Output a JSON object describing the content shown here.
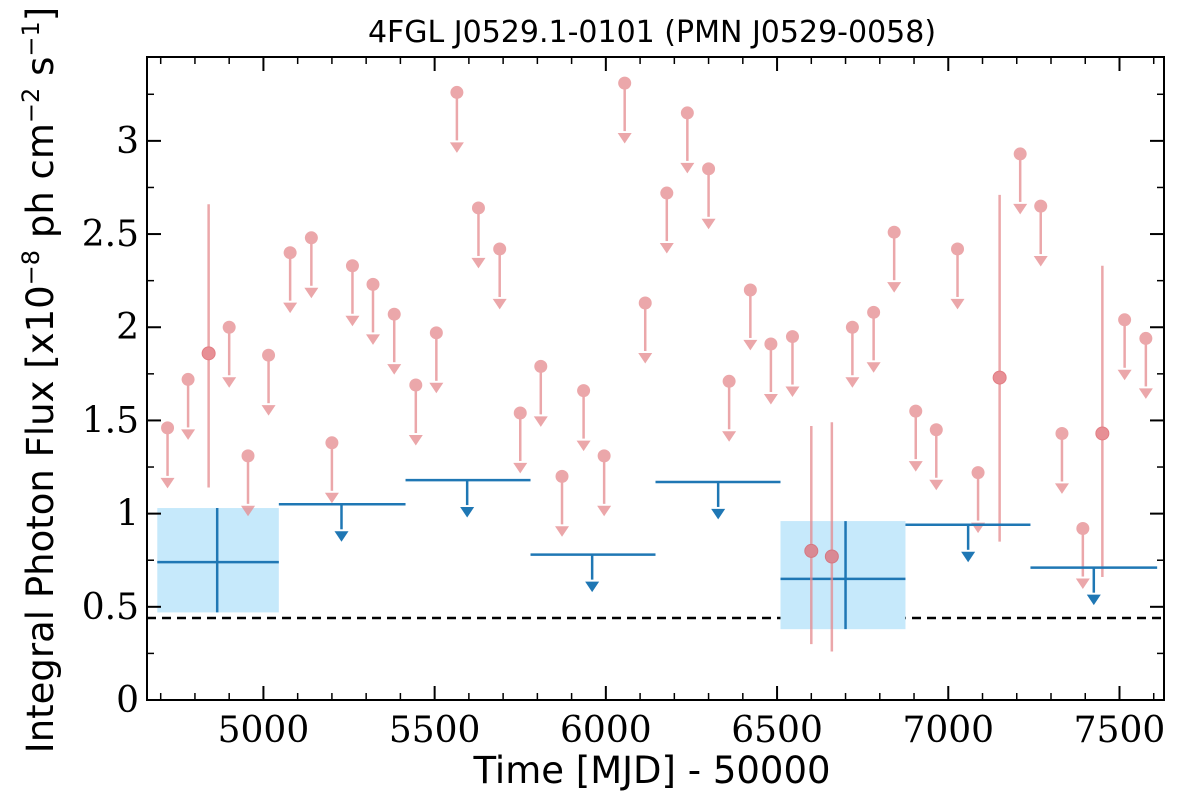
{
  "chart_data": {
    "type": "scatter",
    "title": "4FGL J0529.1-0101 (PMN J0529-0058)",
    "xlabel": "Time [MJD] - 50000",
    "ylabel": "Integral Photon Flux [x10",
    "ylabel_exp1": "−8",
    "ylabel_mid": " ph cm",
    "ylabel_exp2": "−2",
    "ylabel_mid2": " s",
    "ylabel_exp3": "−1",
    "ylabel_end": "]",
    "xlim": [
      4660,
      7630
    ],
    "ylim": [
      0,
      3.45
    ],
    "x_ticks": [
      5000,
      5500,
      6000,
      6500,
      7000,
      7500
    ],
    "x_tick_labels": [
      "5000",
      "5500",
      "6000",
      "6500",
      "7000",
      "7500"
    ],
    "y_ticks": [
      0,
      0.5,
      1,
      1.5,
      2,
      2.5,
      3
    ],
    "y_tick_labels": [
      "0",
      "0.5",
      "1",
      "1.5",
      "2",
      "2.5",
      "3"
    ],
    "reference_line": {
      "y": 0.44,
      "style": "dashed",
      "color": "#000000"
    },
    "colors": {
      "monthly": "#e58a8e",
      "yearly": "#1f77b4",
      "yearly_box": "#c6e9fb"
    },
    "series": [
      {
        "kind": "upper_limits_monthly",
        "points": [
          {
            "x": 4720,
            "y": 1.46
          },
          {
            "x": 4780,
            "y": 1.72
          },
          {
            "x": 4900,
            "y": 2.0
          },
          {
            "x": 4955,
            "y": 1.31
          },
          {
            "x": 5015,
            "y": 1.85
          },
          {
            "x": 5078,
            "y": 2.4
          },
          {
            "x": 5140,
            "y": 2.48
          },
          {
            "x": 5200,
            "y": 1.38
          },
          {
            "x": 5260,
            "y": 2.33
          },
          {
            "x": 5320,
            "y": 2.23
          },
          {
            "x": 5382,
            "y": 2.07
          },
          {
            "x": 5445,
            "y": 1.69
          },
          {
            "x": 5505,
            "y": 1.97
          },
          {
            "x": 5565,
            "y": 3.26
          },
          {
            "x": 5628,
            "y": 2.64
          },
          {
            "x": 5690,
            "y": 2.42
          },
          {
            "x": 5750,
            "y": 1.54
          },
          {
            "x": 5810,
            "y": 1.79
          },
          {
            "x": 5872,
            "y": 1.2
          },
          {
            "x": 5935,
            "y": 1.66
          },
          {
            "x": 5995,
            "y": 1.31
          },
          {
            "x": 6055,
            "y": 3.31
          },
          {
            "x": 6115,
            "y": 2.13
          },
          {
            "x": 6178,
            "y": 2.72
          },
          {
            "x": 6238,
            "y": 3.15
          },
          {
            "x": 6300,
            "y": 2.85
          },
          {
            "x": 6360,
            "y": 1.71
          },
          {
            "x": 6422,
            "y": 2.2
          },
          {
            "x": 6482,
            "y": 1.91
          },
          {
            "x": 6545,
            "y": 1.95
          },
          {
            "x": 6720,
            "y": 2.0
          },
          {
            "x": 6782,
            "y": 2.08
          },
          {
            "x": 6842,
            "y": 2.51
          },
          {
            "x": 6905,
            "y": 1.55
          },
          {
            "x": 6965,
            "y": 1.45
          },
          {
            "x": 7027,
            "y": 2.42
          },
          {
            "x": 7087,
            "y": 1.22
          },
          {
            "x": 7210,
            "y": 2.93
          },
          {
            "x": 7270,
            "y": 2.65
          },
          {
            "x": 7332,
            "y": 1.43
          },
          {
            "x": 7393,
            "y": 0.92
          },
          {
            "x": 7515,
            "y": 2.04
          },
          {
            "x": 7577,
            "y": 1.94
          }
        ]
      },
      {
        "kind": "detections_monthly",
        "points": [
          {
            "x": 4840,
            "y": 1.86,
            "ylo": 1.14,
            "yhi": 2.66
          },
          {
            "x": 6600,
            "y": 0.8,
            "ylo": 0.3,
            "yhi": 1.47
          },
          {
            "x": 6660,
            "y": 0.77,
            "ylo": 0.26,
            "yhi": 1.49
          },
          {
            "x": 7150,
            "y": 1.73,
            "ylo": 0.85,
            "yhi": 2.71
          },
          {
            "x": 7450,
            "y": 1.43,
            "ylo": 0.66,
            "yhi": 2.33
          }
        ]
      },
      {
        "kind": "detections_yearly",
        "points": [
          {
            "x": 4865,
            "y": 0.74,
            "xlo": 4690,
            "xhi": 5045,
            "ylo": 0.47,
            "yhi": 1.03
          },
          {
            "x": 6700,
            "y": 0.65,
            "xlo": 6510,
            "xhi": 6875,
            "ylo": 0.38,
            "yhi": 0.96
          }
        ]
      },
      {
        "kind": "upper_limits_yearly",
        "points": [
          {
            "x": 5228,
            "y": 1.05,
            "xlo": 5045,
            "xhi": 5415
          },
          {
            "x": 5595,
            "y": 1.18,
            "xlo": 5415,
            "xhi": 5780
          },
          {
            "x": 5960,
            "y": 0.78,
            "xlo": 5780,
            "xhi": 6145
          },
          {
            "x": 6328,
            "y": 1.17,
            "xlo": 6145,
            "xhi": 6510
          },
          {
            "x": 7058,
            "y": 0.94,
            "xlo": 6875,
            "xhi": 7240
          },
          {
            "x": 7425,
            "y": 0.71,
            "xlo": 7240,
            "xhi": 7610
          }
        ]
      }
    ]
  }
}
